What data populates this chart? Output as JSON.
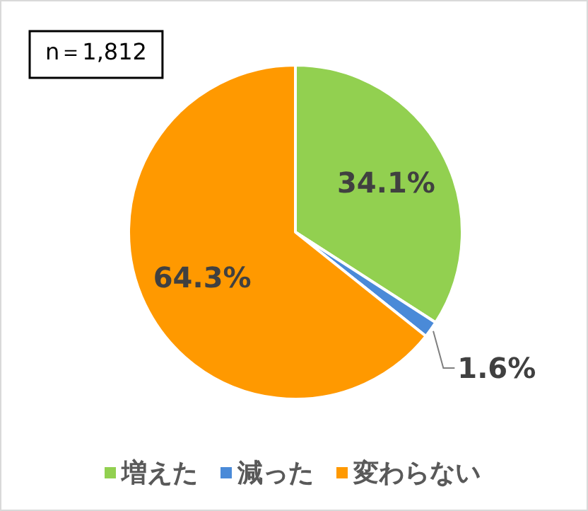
{
  "chart_data": {
    "type": "pie",
    "categories": [
      "増えた",
      "減った",
      "変わらない"
    ],
    "values": [
      34.1,
      1.6,
      64.3
    ],
    "colors": [
      "#92d050",
      "#4a8ad8",
      "#ff9900"
    ],
    "value_labels": [
      "34.1%",
      "1.6%",
      "64.3%"
    ],
    "annotations": [
      "n＝1,812"
    ],
    "legend": "bottom"
  }
}
